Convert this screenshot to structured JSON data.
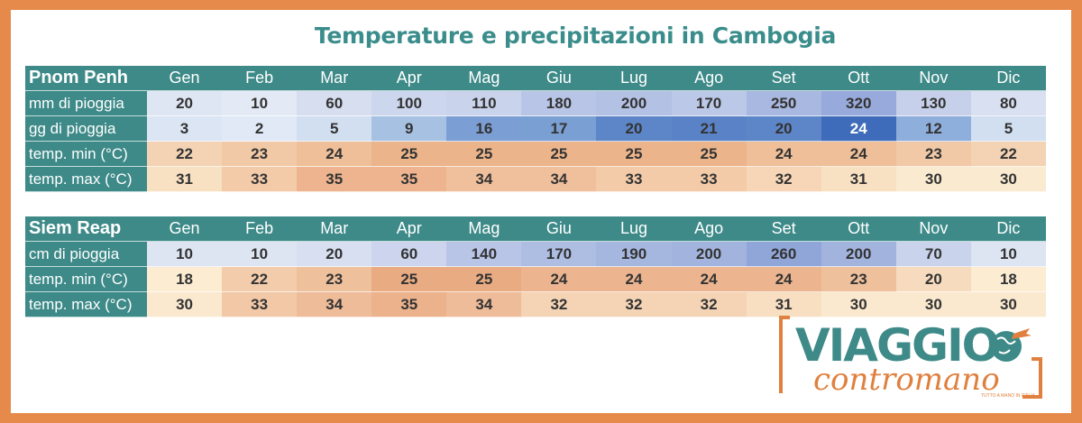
{
  "title": "Temperature e precipitazioni in Cambogia",
  "months": [
    "Gen",
    "Feb",
    "Mar",
    "Apr",
    "Mag",
    "Giu",
    "Lug",
    "Ago",
    "Set",
    "Ott",
    "Nov",
    "Dic"
  ],
  "tables": [
    {
      "city": "Pnom Penh",
      "rows": [
        {
          "label": "mm di pioggia",
          "kind": "rain",
          "values": [
            "20",
            "10",
            "60",
            "100",
            "110",
            "180",
            "200",
            "170",
            "250",
            "320",
            "130",
            "80"
          ],
          "colors": [
            "#dfe6f3",
            "#e4eaf5",
            "#d6def0",
            "#ccd6ed",
            "#c9d3eb",
            "#b8c5e6",
            "#b3c1e4",
            "#bcc8e7",
            "#a9b8e0",
            "#98aadb",
            "#c6d0ea",
            "#d9e0f1"
          ],
          "text": [
            "#333",
            "#333",
            "#333",
            "#333",
            "#333",
            "#333",
            "#333",
            "#333",
            "#333",
            "#333",
            "#333",
            "#333"
          ]
        },
        {
          "label": "gg di pioggia",
          "kind": "raindays",
          "values": [
            "3",
            "2",
            "5",
            "9",
            "16",
            "17",
            "20",
            "21",
            "20",
            "24",
            "12",
            "5"
          ],
          "colors": [
            "#dbe5f4",
            "#e1e9f6",
            "#d1dff1",
            "#a7c1e3",
            "#7b9fd4",
            "#7a9fd3",
            "#5d86c8",
            "#5a83c7",
            "#5d86c8",
            "#3e6cbb",
            "#8eaedb",
            "#d1dff1"
          ],
          "text": [
            "#333",
            "#333",
            "#333",
            "#333",
            "#333",
            "#333",
            "#333",
            "#333",
            "#333",
            "#ffffff",
            "#333",
            "#333"
          ]
        },
        {
          "label": "temp. min (°C)",
          "kind": "tmin",
          "values": [
            "22",
            "23",
            "24",
            "25",
            "25",
            "25",
            "25",
            "25",
            "24",
            "24",
            "23",
            "22"
          ],
          "colors": [
            "#f3d3b4",
            "#f1c9a6",
            "#eebf98",
            "#ecb48a",
            "#ecb48a",
            "#ecb48a",
            "#ecb48a",
            "#ecb48a",
            "#eebf98",
            "#eebf98",
            "#f1c9a6",
            "#f3d3b4"
          ],
          "text": [
            "#333",
            "#333",
            "#333",
            "#333",
            "#333",
            "#333",
            "#333",
            "#333",
            "#333",
            "#333",
            "#333",
            "#333"
          ]
        },
        {
          "label": "temp. max (°C)",
          "kind": "tmax",
          "values": [
            "31",
            "33",
            "35",
            "35",
            "34",
            "34",
            "33",
            "33",
            "32",
            "31",
            "30",
            "30"
          ],
          "colors": [
            "#f8e0c3",
            "#f3cba9",
            "#eeb48f",
            "#eeb48f",
            "#f0bf9c",
            "#f0bf9c",
            "#f3cba9",
            "#f3cba9",
            "#f6d6b6",
            "#f8e0c3",
            "#faebd0",
            "#faebd0"
          ],
          "text": [
            "#333",
            "#333",
            "#333",
            "#333",
            "#333",
            "#333",
            "#333",
            "#333",
            "#333",
            "#333",
            "#333",
            "#333"
          ]
        }
      ]
    },
    {
      "city": "Siem Reap",
      "rows": [
        {
          "label": "cm di pioggia",
          "kind": "rain",
          "values": [
            "10",
            "10",
            "20",
            "60",
            "140",
            "170",
            "190",
            "200",
            "260",
            "200",
            "70",
            "10"
          ],
          "colors": [
            "#dde4f2",
            "#dde4f2",
            "#d8dff0",
            "#ccd5ed",
            "#b8c5e6",
            "#aebde2",
            "#a6b7df",
            "#a2b4de",
            "#91a6d8",
            "#a2b4de",
            "#c9d3eb",
            "#dde4f2"
          ],
          "text": [
            "#333",
            "#333",
            "#333",
            "#333",
            "#333",
            "#333",
            "#333",
            "#333",
            "#333",
            "#333",
            "#333",
            "#333"
          ]
        },
        {
          "label": "temp. min (°C)",
          "kind": "tmin",
          "values": [
            "18",
            "22",
            "23",
            "25",
            "25",
            "24",
            "24",
            "24",
            "24",
            "23",
            "20",
            "18"
          ],
          "colors": [
            "#fbecd2",
            "#f3ccab",
            "#efc09c",
            "#e9ab82",
            "#e9ab82",
            "#ecb58f",
            "#ecb58f",
            "#ecb58f",
            "#ecb58f",
            "#efc09c",
            "#f7dbbe",
            "#fbecd2"
          ],
          "text": [
            "#333",
            "#333",
            "#333",
            "#333",
            "#333",
            "#333",
            "#333",
            "#333",
            "#333",
            "#333",
            "#333",
            "#333"
          ]
        },
        {
          "label": "temp. max (°C)",
          "kind": "tmax",
          "values": [
            "30",
            "33",
            "34",
            "35",
            "34",
            "32",
            "32",
            "32",
            "31",
            "30",
            "30",
            "30"
          ],
          "colors": [
            "#fae9cf",
            "#f2c8a7",
            "#eebc98",
            "#ebb28c",
            "#eebc98",
            "#f5d4b5",
            "#f5d4b5",
            "#f5d4b5",
            "#f8dfc2",
            "#fae9cf",
            "#fae9cf",
            "#fae9cf"
          ],
          "text": [
            "#333",
            "#333",
            "#333",
            "#333",
            "#333",
            "#333",
            "#333",
            "#333",
            "#333",
            "#333",
            "#333",
            "#333"
          ]
        }
      ]
    }
  ],
  "logo": {
    "line1": "VIAGGIO",
    "line2": "contromano",
    "tagline": "TUTTO A MANO IN ITALIA",
    "colors": {
      "teal": "#3d8a88",
      "orange": "#e0803e"
    }
  }
}
